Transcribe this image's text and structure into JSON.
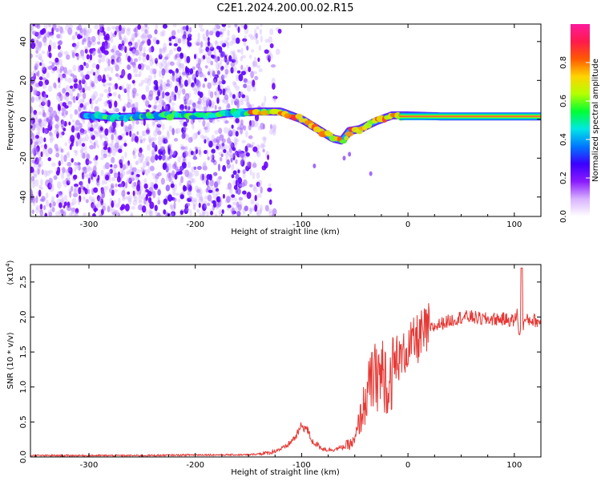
{
  "title": "C2E1.2024.200.00.02.R15",
  "chart_data": [
    {
      "type": "heatmap",
      "xlabel": "Height of straight line (km)",
      "ylabel": "Frequency (Hz)",
      "xlim": [
        -355,
        125
      ],
      "ylim": [
        -50,
        49
      ],
      "xticks": [
        -300,
        -200,
        -100,
        0,
        100
      ],
      "xtick_labels": [
        "-300",
        "-200",
        "-100",
        "0",
        "100"
      ],
      "yticks": [
        -40,
        -20,
        0,
        20,
        40
      ],
      "ytick_labels": [
        "-40",
        "-20",
        "0",
        "20",
        "40"
      ],
      "noise_region_x": [
        -355,
        -140
      ],
      "signal_track": {
        "x": [
          -305,
          -280,
          -250,
          -220,
          -185,
          -170,
          -140,
          -120,
          -100,
          -85,
          -70,
          -62,
          -55,
          -45,
          -30,
          -15,
          0,
          30,
          60,
          90,
          125
        ],
        "frequency": [
          2,
          1,
          1.5,
          2,
          2,
          3,
          4,
          4,
          0,
          -5,
          -10,
          -11,
          -6,
          -5,
          -1,
          2,
          2,
          1.5,
          1.5,
          1.5,
          1.5
        ]
      },
      "colorbar": {
        "label": "Normalized spectral amplitude",
        "range": [
          0,
          1
        ],
        "ticks": [
          0.0,
          0.2,
          0.4,
          0.6,
          0.8
        ],
        "tick_labels": [
          "0.0",
          "0.2",
          "0.4",
          "0.6",
          "0.8"
        ],
        "colormap": [
          "#ffffff",
          "#d9b3ff",
          "#8a1aff",
          "#3a00ff",
          "#0077ff",
          "#00e6e6",
          "#00ff33",
          "#b3ff00",
          "#ffd400",
          "#ff5a00",
          "#ff1a4d",
          "#ff1a9c"
        ]
      }
    },
    {
      "type": "line",
      "xlabel": "Height of straight line (km)",
      "ylabel": "SNR (10 * v/v)",
      "ylabel_scale": "(x10",
      "ylabel_scale_exp": "4",
      "ylabel_scale_close": ")",
      "xlim": [
        -355,
        125
      ],
      "ylim": [
        0,
        2.75
      ],
      "xticks": [
        -300,
        -200,
        -100,
        0,
        100
      ],
      "xtick_labels": [
        "-300",
        "-200",
        "-100",
        "0",
        "100"
      ],
      "yticks": [
        0.0,
        0.5,
        1.0,
        1.5,
        2.0,
        2.5
      ],
      "ytick_labels": [
        "0.0",
        "0.5",
        "1.0",
        "1.5",
        "2.0",
        "2.5"
      ],
      "color": "#e53935",
      "series": [
        {
          "name": "SNR",
          "x": [
            -355,
            -300,
            -250,
            -200,
            -150,
            -130,
            -115,
            -105,
            -100,
            -95,
            -90,
            -80,
            -75,
            -65,
            -55,
            -50,
            -45,
            -40,
            -35,
            -30,
            -25,
            -20,
            -15,
            -10,
            -5,
            0,
            10,
            20,
            30,
            40,
            50,
            60,
            70,
            80,
            90,
            100,
            103,
            105,
            107,
            110,
            115,
            120,
            125
          ],
          "y": [
            0.02,
            0.02,
            0.02,
            0.03,
            0.03,
            0.06,
            0.14,
            0.3,
            0.45,
            0.4,
            0.22,
            0.12,
            0.1,
            0.12,
            0.18,
            0.22,
            0.55,
            0.8,
            1.05,
            1.15,
            1.2,
            1.1,
            1.2,
            1.35,
            1.45,
            1.55,
            1.7,
            1.82,
            1.9,
            1.95,
            2.0,
            2.0,
            1.97,
            1.97,
            1.97,
            1.95,
            2.05,
            1.7,
            1.85,
            1.95,
            1.96,
            1.95,
            1.92
          ]
        }
      ]
    }
  ]
}
